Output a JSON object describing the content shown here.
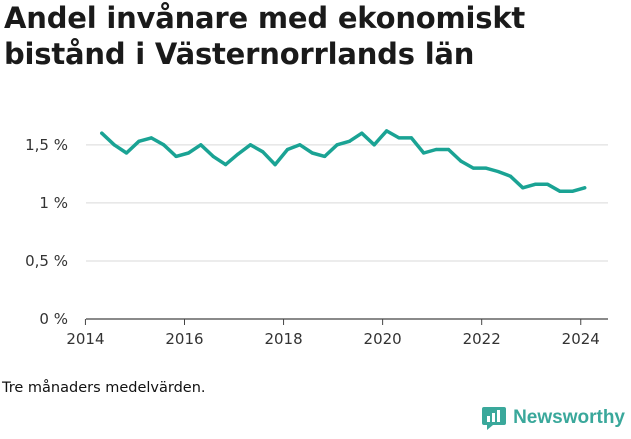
{
  "header": {
    "title": "Andel invånare med ekonomiskt bistånd i Västernorrlands län"
  },
  "footer": {
    "caption": "Tre månaders medelvärden.",
    "brand": "Newsworthy"
  },
  "colors": {
    "line": "#1aa394",
    "grid": "#d9d9d9",
    "axis": "#333333",
    "brand": "#3aa89b"
  },
  "chart_data": {
    "type": "line",
    "title": "Andel invånare med ekonomiskt bistånd i Västernorrlands län",
    "xlabel": "",
    "ylabel": "",
    "xlim": [
      2013.85,
      2024.55
    ],
    "ylim": [
      0,
      1.8
    ],
    "grid": true,
    "y_ticks": [
      {
        "value": 0,
        "label": "0 %"
      },
      {
        "value": 0.5,
        "label": "0,5 %"
      },
      {
        "value": 1,
        "label": "1 %"
      },
      {
        "value": 1.5,
        "label": "1,5 %"
      }
    ],
    "x_ticks": [
      {
        "value": 2014,
        "label": "2014"
      },
      {
        "value": 2016,
        "label": "2016"
      },
      {
        "value": 2018,
        "label": "2018"
      },
      {
        "value": 2020,
        "label": "2020"
      },
      {
        "value": 2022,
        "label": "2022"
      },
      {
        "value": 2024,
        "label": "2024"
      }
    ],
    "series": [
      {
        "x": [
          2014.33,
          2014.58,
          2014.83,
          2015.08,
          2015.33,
          2015.58,
          2015.83,
          2016.08,
          2016.33,
          2016.58,
          2016.83,
          2017.08,
          2017.33,
          2017.58,
          2017.83,
          2018.08,
          2018.33,
          2018.58,
          2018.83,
          2019.08,
          2019.33,
          2019.58,
          2019.83,
          2020.08,
          2020.33,
          2020.58,
          2020.83,
          2021.08,
          2021.33,
          2021.58,
          2021.83,
          2022.08,
          2022.33,
          2022.58,
          2022.83,
          2023.08,
          2023.33,
          2023.58,
          2023.83,
          2024.08
        ],
        "values": [
          1.6,
          1.5,
          1.43,
          1.53,
          1.56,
          1.5,
          1.4,
          1.43,
          1.5,
          1.4,
          1.33,
          1.42,
          1.5,
          1.44,
          1.33,
          1.46,
          1.5,
          1.43,
          1.4,
          1.5,
          1.53,
          1.6,
          1.5,
          1.62,
          1.56,
          1.56,
          1.43,
          1.46,
          1.46,
          1.36,
          1.3,
          1.3,
          1.27,
          1.23,
          1.13,
          1.16,
          1.16,
          1.1,
          1.1,
          1.13
        ]
      }
    ]
  }
}
